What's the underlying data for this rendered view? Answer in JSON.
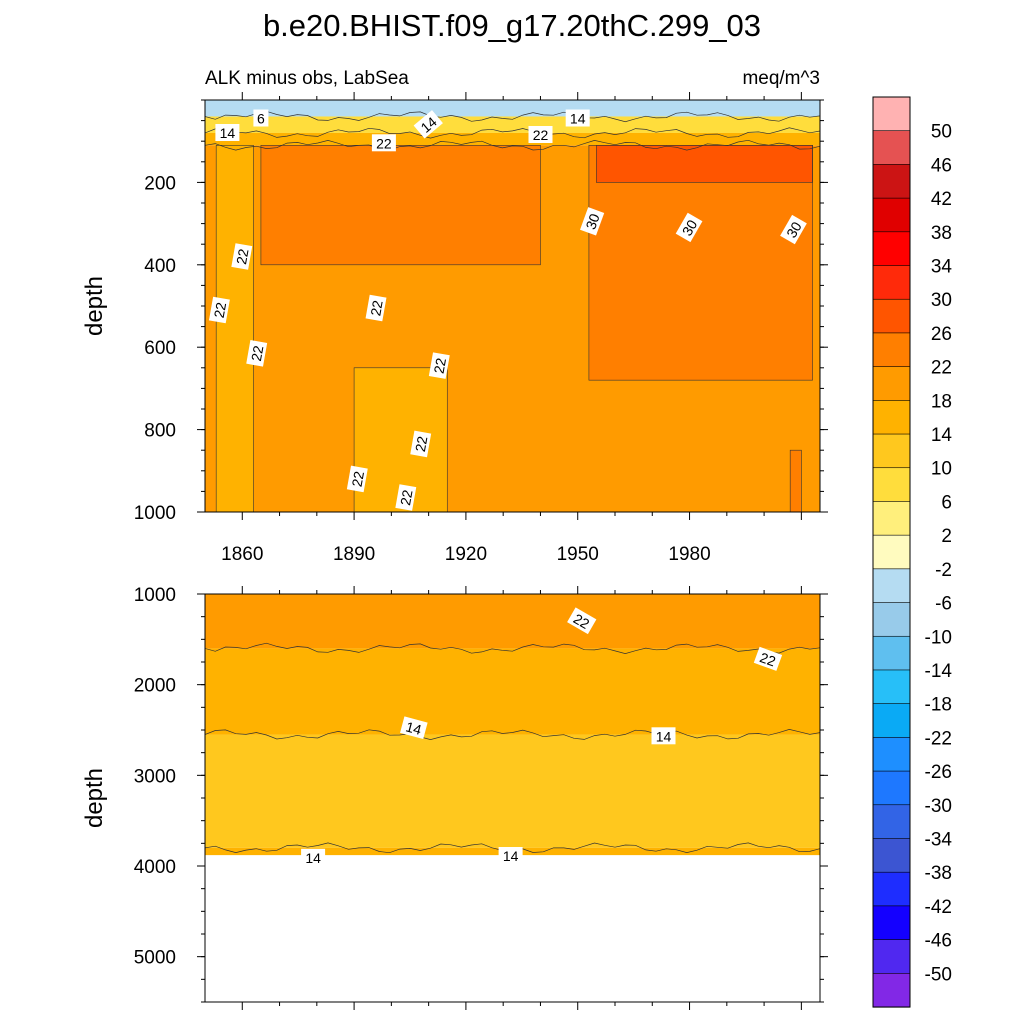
{
  "title": "b.e20.BHIST.f09_g17.20thC.299_03",
  "subtitle_left": "ALK minus obs, LabSea",
  "subtitle_right": "meq/m^3",
  "chart_data": [
    {
      "type": "heatmap",
      "panel": "upper",
      "ylabel": "depth",
      "xlabel": "",
      "xlim": [
        1850,
        2015
      ],
      "ylim": [
        1000,
        0
      ],
      "y_reversed": true,
      "x_ticks": [
        "1860",
        "1890",
        "1920",
        "1950",
        "1980"
      ],
      "y_ticks": [
        "200",
        "400",
        "600",
        "800",
        "1000"
      ],
      "bands": [
        {
          "depth_top": 0,
          "depth_bottom": 40,
          "level": -2
        },
        {
          "depth_top": 40,
          "depth_bottom": 80,
          "level": 10
        },
        {
          "depth_top": 80,
          "depth_bottom": 110,
          "level": 18
        },
        {
          "depth_top": 110,
          "depth_bottom": 1000,
          "level": 22
        }
      ],
      "regions": [
        {
          "x_start": 1853,
          "x_end": 1863,
          "depth_top": 110,
          "depth_bottom": 1000,
          "level": 18
        },
        {
          "x_start": 1865,
          "x_end": 1940,
          "depth_top": 110,
          "depth_bottom": 400,
          "level": 26
        },
        {
          "x_start": 1890,
          "x_end": 1915,
          "depth_top": 650,
          "depth_bottom": 1000,
          "level": 18
        },
        {
          "x_start": 1953,
          "x_end": 2013,
          "depth_top": 110,
          "depth_bottom": 680,
          "level": 26
        },
        {
          "x_start": 1955,
          "x_end": 2013,
          "depth_top": 110,
          "depth_bottom": 200,
          "level": 30
        },
        {
          "x_start": 2007,
          "x_end": 2010,
          "depth_top": 850,
          "depth_bottom": 1000,
          "level": 26
        }
      ],
      "contour_labels": [
        {
          "text": "6",
          "x": 1865,
          "depth": 45,
          "angle": 0
        },
        {
          "text": "14",
          "x": 1856,
          "depth": 80,
          "angle": 0
        },
        {
          "text": "14",
          "x": 1910,
          "depth": 60,
          "angle": -40
        },
        {
          "text": "14",
          "x": 1950,
          "depth": 45,
          "angle": 0
        },
        {
          "text": "22",
          "x": 1898,
          "depth": 105,
          "angle": 0
        },
        {
          "text": "22",
          "x": 1940,
          "depth": 85,
          "angle": 0
        },
        {
          "text": "22",
          "x": 1860,
          "depth": 380,
          "angle": -80
        },
        {
          "text": "22",
          "x": 1854,
          "depth": 510,
          "angle": -80
        },
        {
          "text": "22",
          "x": 1864,
          "depth": 615,
          "angle": -80
        },
        {
          "text": "22",
          "x": 1896,
          "depth": 505,
          "angle": -80
        },
        {
          "text": "22",
          "x": 1913,
          "depth": 645,
          "angle": -80
        },
        {
          "text": "22",
          "x": 1908,
          "depth": 835,
          "angle": -80
        },
        {
          "text": "22",
          "x": 1891,
          "depth": 920,
          "angle": -80
        },
        {
          "text": "22",
          "x": 1904,
          "depth": 965,
          "angle": -80
        },
        {
          "text": "30",
          "x": 1954,
          "depth": 295,
          "angle": -70
        },
        {
          "text": "30",
          "x": 1980,
          "depth": 310,
          "angle": -60
        },
        {
          "text": "30",
          "x": 2008,
          "depth": 315,
          "angle": -60
        }
      ]
    },
    {
      "type": "heatmap",
      "panel": "lower",
      "ylabel": "depth",
      "xlabel": "",
      "xlim": [
        1850,
        2015
      ],
      "ylim": [
        5500,
        1000
      ],
      "y_reversed": true,
      "x_ticks": [],
      "y_ticks": [
        "1000",
        "2000",
        "3000",
        "4000",
        "5000"
      ],
      "bands": [
        {
          "depth_top": 1000,
          "depth_bottom": 1600,
          "level": 22
        },
        {
          "depth_top": 1600,
          "depth_bottom": 2550,
          "level": 18
        },
        {
          "depth_top": 2550,
          "depth_bottom": 3800,
          "level": 14
        },
        {
          "depth_top": 3800,
          "depth_bottom": 3880,
          "level": 18
        }
      ],
      "bottom_of_data_depth": 3880,
      "contour_labels": [
        {
          "text": "22",
          "x": 1951,
          "depth": 1300,
          "angle": 30
        },
        {
          "text": "22",
          "x": 2001,
          "depth": 1720,
          "angle": 20
        },
        {
          "text": "14",
          "x": 1906,
          "depth": 2480,
          "angle": 15
        },
        {
          "text": "14",
          "x": 1973,
          "depth": 2570,
          "angle": 0
        },
        {
          "text": "14",
          "x": 1879,
          "depth": 3910,
          "angle": 0
        },
        {
          "text": "14",
          "x": 1932,
          "depth": 3890,
          "angle": 0
        }
      ]
    }
  ],
  "colorbar": {
    "labels": [
      "50",
      "46",
      "42",
      "38",
      "34",
      "30",
      "26",
      "22",
      "18",
      "14",
      "10",
      "6",
      "2",
      "-2",
      "-6",
      "-10",
      "-14",
      "-18",
      "-22",
      "-26",
      "-30",
      "-34",
      "-38",
      "-42",
      "-46",
      "-50"
    ],
    "colors": [
      "#ffb2b2",
      "#e55252",
      "#cc1414",
      "#e00000",
      "#ff0000",
      "#ff2a0a",
      "#ff5500",
      "#ff7f00",
      "#ff9b00",
      "#ffb200",
      "#ffc81e",
      "#ffdd3c",
      "#ffef7c",
      "#fffbbf",
      "#b5dcf2",
      "#98cbea",
      "#5fbfef",
      "#27bff8",
      "#0aaaf5",
      "#1e8fff",
      "#1e78ff",
      "#3264e6",
      "#3c55d2",
      "#1e2dff",
      "#1400ff",
      "#5028f0",
      "#8228e6"
    ],
    "level_values": [
      54,
      50,
      46,
      42,
      38,
      34,
      30,
      26,
      22,
      18,
      14,
      10,
      6,
      2,
      -2,
      -6,
      -10,
      -14,
      -18,
      -22,
      -26,
      -30,
      -34,
      -38,
      -42,
      -46,
      -50
    ]
  }
}
